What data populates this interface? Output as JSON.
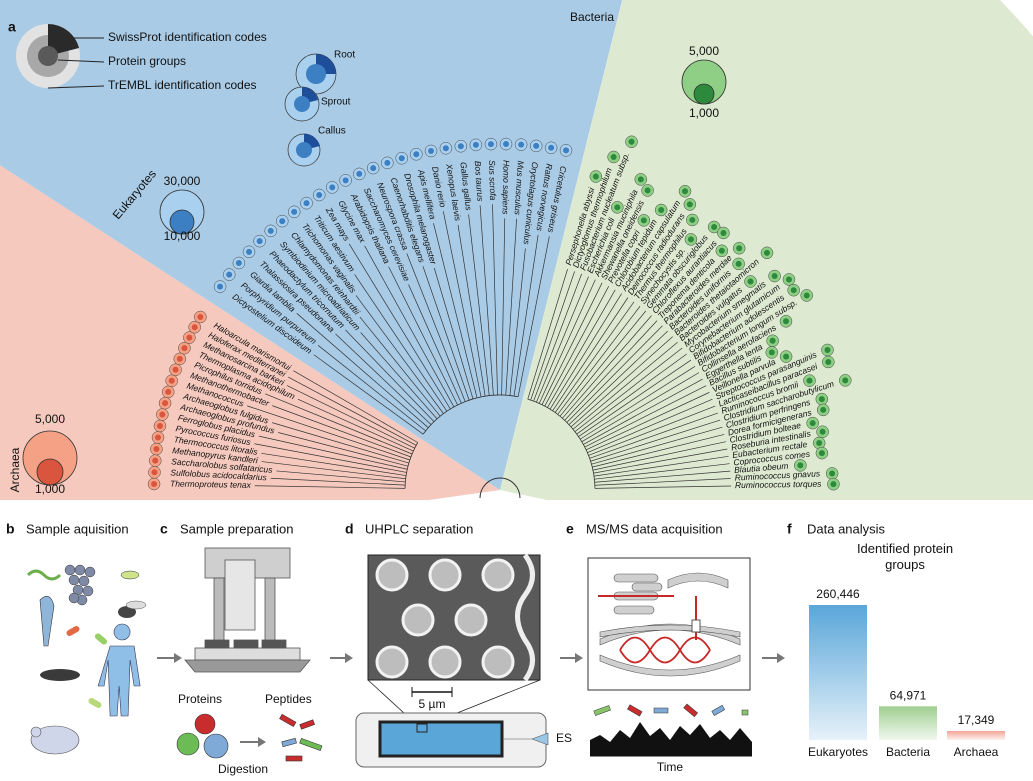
{
  "panel_a": {
    "label": "a",
    "legend": [
      "SwissProt identification codes",
      "Protein groups",
      "TrEMBL identification codes"
    ],
    "archaea": {
      "name": "Archaea",
      "scale": [
        "5,000",
        "1,000"
      ],
      "species": [
        "Thermoproteus tenax",
        "Sulfolobus acidocaldarius",
        "Saccharolobus solfataricus",
        "Methanopyrus kandleri",
        "Thermococcus litoralis",
        "Pyrococcus furiosus",
        "Ferroglobus placidus",
        "Archaeoglobus profundus",
        "Archaeoglobus fulgidus",
        "Methanococcus",
        "Methanothermobacter",
        "Picrophilus torridus",
        "Thermoplasma acidophilum",
        "Methanosarcina barkeri",
        "Haloferax mediterranei",
        "Haloarcula marismortui"
      ]
    },
    "eukaryotes": {
      "name": "Eukaryotes",
      "scale": [
        "30,000",
        "10,000"
      ],
      "tissues": [
        "Root",
        "Sprout",
        "Callus"
      ],
      "species": [
        "Dictyostelium discoideum",
        "Porphyridium purpureum",
        "Giardia lamblia",
        "Thalassiosira pseudonana",
        "Phaeodactylum tricornutum",
        "Symbiodinium microadriaticum",
        "Chlamydomonas reinhardtii",
        "Trichomonas vaginalis",
        "Triticum aestivum",
        "Zea mays",
        "Glycine max",
        "Arabidopsis thaliana",
        "Saccharomyces cerevisiae",
        "Neurospora crassa",
        "Caenorhabditis elegans",
        "Drosophila melanogaster",
        "Apis mellifera",
        "Danio rerio",
        "Xenopus laevis",
        "Gallus gallus",
        "Bos taurus",
        "Sus scrofa",
        "Homo sapiens",
        "Mus musculus",
        "Oryctolagus cuniculus",
        "Rattus norvegicus",
        "Cricetulus griseus"
      ]
    },
    "bacteria": {
      "name": "Bacteria",
      "scale": [
        "5,000",
        "1,000"
      ],
      "species": [
        "Persephonella abyssi",
        "Dictyoglomus thermophilum",
        "Fusobacterium nucleatum subsp.",
        "Escherichia coli",
        "Akkermansia muciniphila",
        "Shewanella oneidensis",
        "Prevotella copri",
        "Chlorobium tepidum",
        "Acidobacterium capsulatum",
        "Deinococcus radiodurans",
        "Thermus thermophilus",
        "Synechocystis sp.",
        "Gemmata obscuriglobus",
        "Chloroflexus aurantiacus",
        "Treponema denticola",
        "Parabacteroides merdae",
        "Bacteroides uniformis",
        "Bacteroides thetaiotaomicron",
        "Bacteroides vulgatus",
        "Mycobacterium smegmatis",
        "Corynebacterium glutamicum",
        "Bifidobacterium adolescentis",
        "Bifidobacterium longum subsp.",
        "Collinsella aerofaciens",
        "Eggerthella lenta",
        "Bacillus subtilis",
        "Veillonella parvula",
        "Streptococcus parasanguinis",
        "Lacticaseibacillus paracasei",
        "Ruminococcus bromii",
        "Clostridium saccharobutylicum",
        "Clostridium perfringens",
        "Dorea formicigenerans",
        "Clostridium bolteae",
        "Roseburia intestinalis",
        "Eubacterium rectale",
        "Coprococcus comes",
        "Blautia obeum",
        "Ruminococcus gnavus",
        "Ruminococcus torques"
      ]
    }
  },
  "panel_b": {
    "label": "b",
    "title": "Sample aquisition"
  },
  "panel_c": {
    "label": "c",
    "title": "Sample preparation",
    "proteins": "Proteins",
    "peptides": "Peptides",
    "digestion": "Digestion"
  },
  "panel_d": {
    "label": "d",
    "title": "UHPLC separation",
    "scale_bar": "5 µm",
    "outlet": "ES"
  },
  "panel_e": {
    "label": "e",
    "title": "MS/MS data acquisition",
    "x_label": "Time"
  },
  "panel_f": {
    "label": "f",
    "title": "Data analysis"
  },
  "chart_data": {
    "type": "bar",
    "title": "Identified protein groups",
    "categories": [
      "Eukaryotes",
      "Bacteria",
      "Archaea"
    ],
    "values": [
      260446,
      64971,
      17349
    ],
    "value_labels": [
      "260,446",
      "64,971",
      "17,349"
    ],
    "colors": [
      "#5aa6d9",
      "#9fce8f",
      "#f3a595"
    ]
  }
}
